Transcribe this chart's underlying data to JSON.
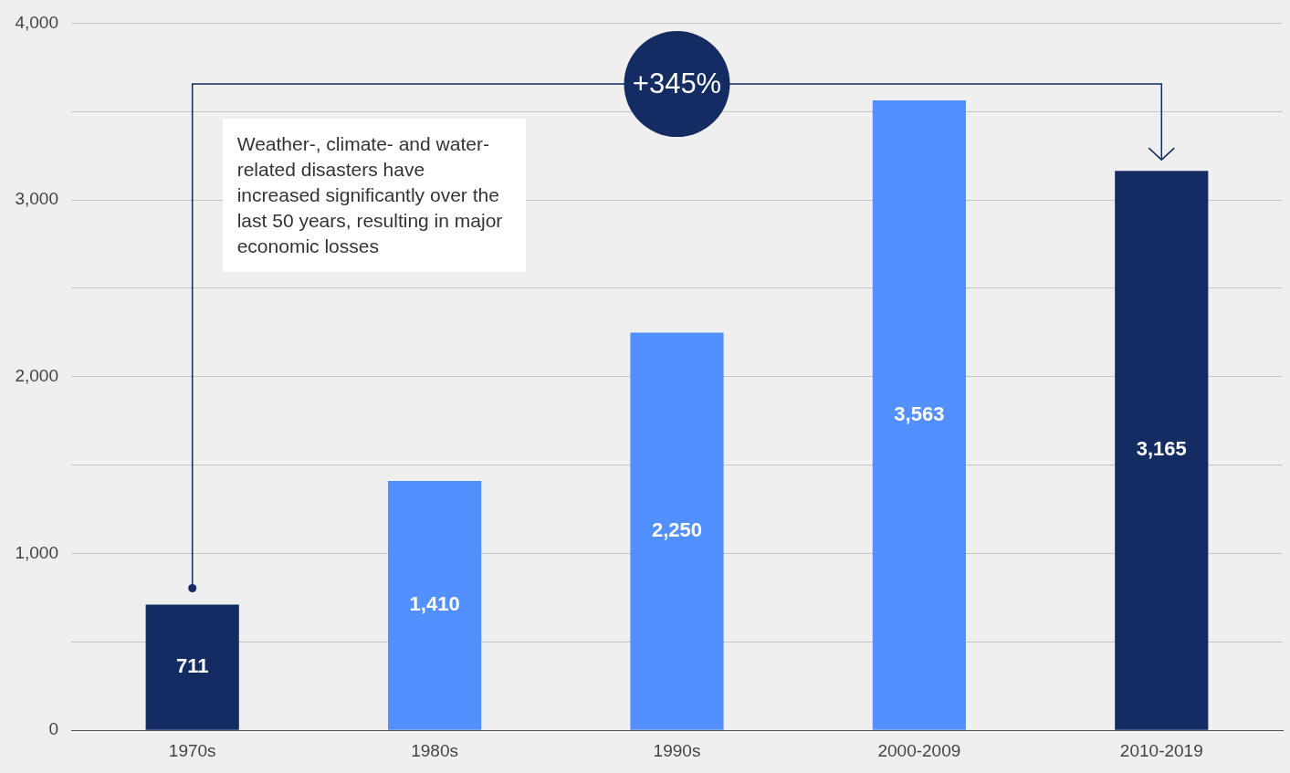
{
  "chart_data": {
    "type": "bar",
    "categories": [
      "1970s",
      "1980s",
      "1990s",
      "2000-2009",
      "2010-2019"
    ],
    "values": [
      711,
      1410,
      2250,
      3563,
      3165
    ],
    "colors": [
      "#152c63",
      "#5290ff",
      "#5290ff",
      "#5290ff",
      "#152c63"
    ],
    "value_labels": [
      "711",
      "1,410",
      "2,250",
      "3,563",
      "3,165"
    ],
    "ylim": [
      0,
      4000
    ],
    "yticks": [
      0,
      {
        "value": 500,
        "label": null
      },
      {
        "value": 1000,
        "label": "1,000"
      },
      {
        "value": 1500,
        "label": null
      },
      {
        "value": 2000,
        "label": "2,000"
      },
      {
        "value": 2500,
        "label": null
      },
      {
        "value": 3000,
        "label": "3,000"
      },
      {
        "value": 3500,
        "label": null
      },
      {
        "value": 4000,
        "label": "4,000"
      }
    ],
    "grid": "y",
    "annotations": [
      "+345%",
      "Weather-, climate- and water-related disasters have increased significantly over the last 50 years, resulting in major economic losses"
    ]
  }
}
